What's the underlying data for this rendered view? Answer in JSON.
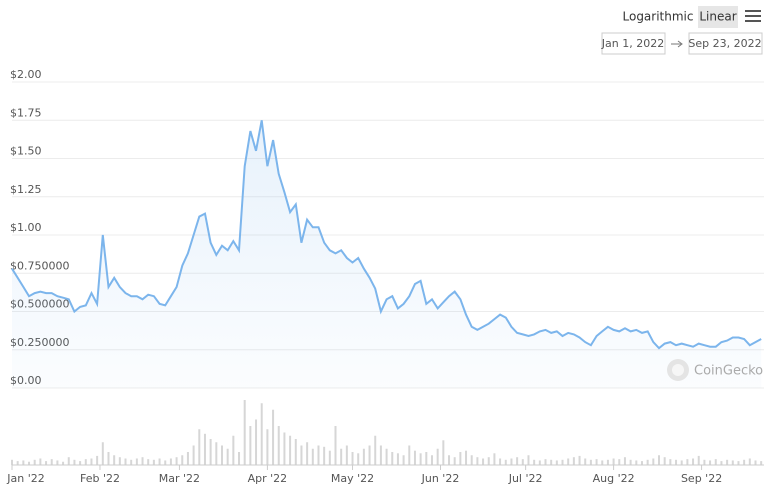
{
  "toolbar": {
    "scale_options": [
      "Logarithmic",
      "Linear"
    ],
    "selected": "Linear",
    "date_from": "Jan 1, 2022",
    "date_to": "Sep 23, 2022"
  },
  "watermark": "CoinGecko",
  "chart_data": {
    "type": "line",
    "log_scale": false,
    "grid": true,
    "color": "#7cb5ec",
    "volume_color": "#d6d6d6",
    "x": [
      1,
      3,
      5,
      7,
      9,
      11,
      13,
      15,
      17,
      19,
      21,
      23,
      25,
      27,
      29,
      31,
      33,
      35,
      37,
      39,
      41,
      43,
      45,
      47,
      49,
      51,
      53,
      55,
      57,
      59,
      61,
      63,
      65,
      67,
      69,
      71,
      73,
      75,
      77,
      79,
      81,
      83,
      85,
      87,
      89,
      91,
      93,
      95,
      97,
      99,
      101,
      103,
      105,
      107,
      109,
      111,
      113,
      115,
      117,
      119,
      121,
      123,
      125,
      127,
      129,
      131,
      133,
      135,
      137,
      139,
      141,
      143,
      145,
      147,
      149,
      151,
      153,
      155,
      157,
      159,
      161,
      163,
      165,
      167,
      169,
      171,
      173,
      175,
      177,
      179,
      181,
      183,
      185,
      187,
      189,
      191,
      193,
      195,
      197,
      199,
      201,
      203,
      205,
      207,
      209,
      211,
      213,
      215,
      217,
      219,
      221,
      223,
      225,
      227,
      229,
      231,
      233,
      235,
      237,
      239,
      241,
      243,
      245,
      247,
      249,
      251,
      253,
      255,
      257,
      259,
      261,
      263,
      265
    ],
    "values": [
      0.78,
      0.72,
      0.66,
      0.6,
      0.62,
      0.63,
      0.62,
      0.62,
      0.6,
      0.59,
      0.58,
      0.5,
      0.53,
      0.54,
      0.62,
      0.55,
      1.0,
      0.66,
      0.72,
      0.66,
      0.62,
      0.6,
      0.6,
      0.58,
      0.61,
      0.6,
      0.55,
      0.54,
      0.6,
      0.66,
      0.8,
      0.88,
      1.0,
      1.12,
      1.14,
      0.95,
      0.87,
      0.93,
      0.9,
      0.96,
      0.9,
      1.45,
      1.68,
      1.55,
      1.75,
      1.45,
      1.62,
      1.4,
      1.28,
      1.15,
      1.2,
      0.95,
      1.1,
      1.05,
      1.05,
      0.95,
      0.9,
      0.88,
      0.9,
      0.85,
      0.82,
      0.85,
      0.78,
      0.72,
      0.65,
      0.5,
      0.58,
      0.6,
      0.52,
      0.55,
      0.6,
      0.68,
      0.7,
      0.55,
      0.58,
      0.52,
      0.56,
      0.6,
      0.63,
      0.58,
      0.48,
      0.4,
      0.38,
      0.4,
      0.42,
      0.45,
      0.48,
      0.46,
      0.4,
      0.36,
      0.35,
      0.34,
      0.35,
      0.37,
      0.38,
      0.36,
      0.37,
      0.34,
      0.36,
      0.35,
      0.33,
      0.3,
      0.28,
      0.34,
      0.37,
      0.4,
      0.38,
      0.37,
      0.39,
      0.37,
      0.38,
      0.36,
      0.37,
      0.3,
      0.26,
      0.29,
      0.3,
      0.28,
      0.29,
      0.28,
      0.27,
      0.29,
      0.28,
      0.27,
      0.27,
      0.3,
      0.31,
      0.33,
      0.33,
      0.32,
      0.28,
      0.3,
      0.32
    ],
    "volume": [
      8,
      6,
      7,
      5,
      8,
      10,
      6,
      9,
      7,
      5,
      12,
      8,
      6,
      9,
      10,
      14,
      35,
      20,
      15,
      12,
      10,
      8,
      10,
      12,
      9,
      8,
      10,
      7,
      10,
      12,
      15,
      20,
      30,
      55,
      48,
      40,
      35,
      30,
      25,
      45,
      20,
      100,
      60,
      70,
      95,
      55,
      85,
      60,
      50,
      45,
      40,
      30,
      35,
      25,
      30,
      28,
      22,
      60,
      25,
      30,
      20,
      18,
      25,
      30,
      45,
      30,
      25,
      20,
      18,
      15,
      30,
      22,
      18,
      20,
      15,
      25,
      38,
      15,
      12,
      20,
      22,
      15,
      12,
      10,
      12,
      18,
      10,
      8,
      10,
      12,
      9,
      15,
      8,
      7,
      9,
      8,
      7,
      8,
      10,
      12,
      14,
      10,
      8,
      9,
      7,
      8,
      10,
      9,
      12,
      8,
      7,
      6,
      8,
      10,
      15,
      12,
      9,
      8,
      7,
      9,
      10,
      14,
      8,
      7,
      9,
      6,
      8,
      7,
      6,
      8,
      10,
      7,
      6
    ],
    "xlim": [
      1,
      266
    ],
    "xticks": [
      {
        "value": 1,
        "label": "Jan '22"
      },
      {
        "value": 32,
        "label": "Feb '22"
      },
      {
        "value": 60,
        "label": "Mar '22"
      },
      {
        "value": 91,
        "label": "Apr '22"
      },
      {
        "value": 121,
        "label": "May '22"
      },
      {
        "value": 152,
        "label": "Jun '22"
      },
      {
        "value": 182,
        "label": "Jul '22"
      },
      {
        "value": 213,
        "label": "Aug '22"
      },
      {
        "value": 244,
        "label": "Sep '22"
      }
    ],
    "ylim": [
      0,
      2
    ],
    "yticks": [
      {
        "value": 0,
        "label": "$0.00"
      },
      {
        "value": 0.25,
        "label": "$0.250000"
      },
      {
        "value": 0.5,
        "label": "$0.500000"
      },
      {
        "value": 0.75,
        "label": "$0.750000"
      },
      {
        "value": 1,
        "label": "$1.00"
      },
      {
        "value": 1.25,
        "label": "$1.25"
      },
      {
        "value": 1.5,
        "label": "$1.50"
      },
      {
        "value": 1.75,
        "label": "$1.75"
      },
      {
        "value": 2,
        "label": "$2.00"
      }
    ]
  }
}
